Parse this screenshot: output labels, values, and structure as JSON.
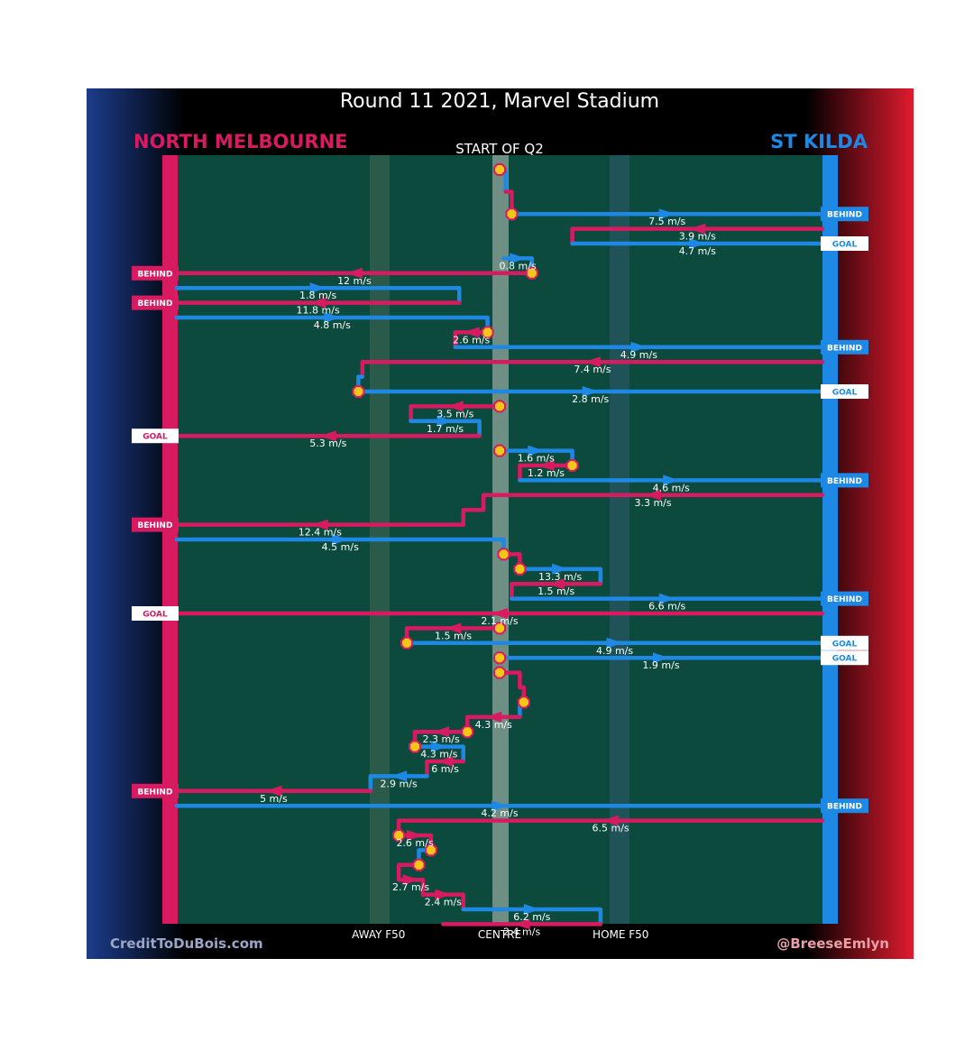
{
  "chart_data": {
    "type": "other",
    "title": "Round 11 2021, Marvel Stadium",
    "subtitle": "START OF Q2",
    "teams": {
      "left": {
        "name": "NORTH MELBOURNE",
        "color": "#d81b60"
      },
      "right": {
        "name": "ST KILDA",
        "color": "#1e88e5"
      }
    },
    "colors": {
      "north": "#d81b60",
      "stkilda": "#1e88e5",
      "field": "#0b4a3c",
      "pin_fill": "#f5c518"
    },
    "x_axis": {
      "domain": [
        -80,
        80
      ],
      "labels": [
        {
          "text": "AWAY F50",
          "x": -30
        },
        {
          "text": "CENTRE",
          "x": 0
        },
        {
          "text": "HOME F50",
          "x": 30
        }
      ]
    },
    "credits": {
      "left": "CreditToDuBois.com",
      "right": "@BreeseEmlyn"
    },
    "paths": [
      {
        "team": "stkilda",
        "pts": [
          [
            0,
            2
          ],
          [
            1.5,
            2
          ],
          [
            1.5,
            3.5
          ]
        ],
        "speed": ""
      },
      {
        "team": "north",
        "pts": [
          [
            1.5,
            3.5
          ],
          [
            3,
            3.5
          ],
          [
            3,
            5
          ]
        ],
        "speed": ""
      },
      {
        "team": "stkilda",
        "pts": [
          [
            3,
            5
          ],
          [
            80,
            5
          ]
        ],
        "speed": "7.5 m/s"
      },
      {
        "team": "north",
        "pts": [
          [
            80,
            6
          ],
          [
            18,
            6
          ],
          [
            18,
            7
          ]
        ],
        "speed": "3.9 m/s"
      },
      {
        "team": "stkilda",
        "pts": [
          [
            18,
            7
          ],
          [
            80,
            7
          ]
        ],
        "speed": "4.7 m/s"
      },
      {
        "team": "stkilda",
        "pts": [
          [
            1,
            8
          ],
          [
            8,
            8
          ],
          [
            8,
            9
          ]
        ],
        "speed": "0.8 m/s"
      },
      {
        "team": "north",
        "pts": [
          [
            8,
            9
          ],
          [
            -80,
            9
          ]
        ],
        "speed": "12 m/s"
      },
      {
        "team": "stkilda",
        "pts": [
          [
            -80,
            10
          ],
          [
            -10,
            10
          ],
          [
            -10,
            11
          ]
        ],
        "speed": "1.8 m/s"
      },
      {
        "team": "north",
        "pts": [
          [
            -10,
            11
          ],
          [
            -80,
            11
          ]
        ],
        "speed": "11.8 m/s"
      },
      {
        "team": "stkilda",
        "pts": [
          [
            -80,
            12
          ],
          [
            -3,
            12
          ],
          [
            -3,
            13
          ]
        ],
        "speed": "4.8 m/s"
      },
      {
        "team": "north",
        "pts": [
          [
            -3,
            13
          ],
          [
            -11,
            13
          ],
          [
            -11,
            14
          ]
        ],
        "speed": "2.6 m/s"
      },
      {
        "team": "stkilda",
        "pts": [
          [
            -11,
            14
          ],
          [
            80,
            14
          ]
        ],
        "speed": "4.9 m/s"
      },
      {
        "team": "north",
        "pts": [
          [
            80,
            15
          ],
          [
            -34,
            15
          ],
          [
            -34,
            16
          ]
        ],
        "speed": "7.4 m/s"
      },
      {
        "team": "stkilda",
        "pts": [
          [
            -34,
            16
          ],
          [
            -35,
            16
          ],
          [
            -35,
            17
          ]
        ],
        "speed": ""
      },
      {
        "team": "stkilda",
        "pts": [
          [
            -35,
            17
          ],
          [
            80,
            17
          ]
        ],
        "speed": "2.8 m/s"
      },
      {
        "team": "north",
        "pts": [
          [
            0,
            18
          ],
          [
            -22,
            18
          ],
          [
            -22,
            19
          ]
        ],
        "speed": "3.5 m/s"
      },
      {
        "team": "stkilda",
        "pts": [
          [
            -22,
            19
          ],
          [
            -5,
            19
          ],
          [
            -5,
            20
          ]
        ],
        "speed": "1.7 m/s"
      },
      {
        "team": "north",
        "pts": [
          [
            -5,
            20
          ],
          [
            -80,
            20
          ]
        ],
        "speed": "5.3 m/s"
      },
      {
        "team": "stkilda",
        "pts": [
          [
            0,
            21
          ],
          [
            18,
            21
          ],
          [
            18,
            22
          ]
        ],
        "speed": "1.6 m/s"
      },
      {
        "team": "north",
        "pts": [
          [
            18,
            22
          ],
          [
            5,
            22
          ],
          [
            5,
            23
          ]
        ],
        "speed": "1.2 m/s"
      },
      {
        "team": "stkilda",
        "pts": [
          [
            5,
            23
          ],
          [
            80,
            23
          ]
        ],
        "speed": "4.6 m/s"
      },
      {
        "team": "north",
        "pts": [
          [
            80,
            24
          ],
          [
            -4,
            24
          ],
          [
            -4,
            25
          ],
          [
            -9,
            25
          ],
          [
            -9,
            26
          ]
        ],
        "speed": "3.3 m/s"
      },
      {
        "team": "north",
        "pts": [
          [
            -9,
            26
          ],
          [
            -80,
            26
          ]
        ],
        "speed": "12.4 m/s"
      },
      {
        "team": "stkilda",
        "pts": [
          [
            -80,
            27
          ],
          [
            1,
            27
          ],
          [
            1,
            28
          ]
        ],
        "speed": "4.5 m/s"
      },
      {
        "team": "north",
        "pts": [
          [
            1,
            28
          ],
          [
            5,
            28
          ],
          [
            5,
            29
          ]
        ],
        "speed": ""
      },
      {
        "team": "stkilda",
        "pts": [
          [
            5,
            29
          ],
          [
            25,
            29
          ],
          [
            25,
            30
          ]
        ],
        "speed": "13.3 m/s"
      },
      {
        "team": "north",
        "pts": [
          [
            25,
            30
          ],
          [
            3,
            30
          ],
          [
            3,
            31
          ]
        ],
        "speed": "1.5 m/s"
      },
      {
        "team": "stkilda",
        "pts": [
          [
            3,
            31
          ],
          [
            80,
            31
          ]
        ],
        "speed": "6.6 m/s"
      },
      {
        "team": "north",
        "pts": [
          [
            80,
            32
          ],
          [
            -80,
            32
          ]
        ],
        "speed": "2.1 m/s"
      },
      {
        "team": "north",
        "pts": [
          [
            0,
            33
          ],
          [
            -23,
            33
          ],
          [
            -23,
            34
          ]
        ],
        "speed": "1.5 m/s"
      },
      {
        "team": "stkilda",
        "pts": [
          [
            -23,
            34
          ],
          [
            80,
            34
          ]
        ],
        "speed": "4.9 m/s"
      },
      {
        "team": "stkilda",
        "pts": [
          [
            0,
            35
          ],
          [
            80,
            35
          ]
        ],
        "speed": "1.9 m/s"
      },
      {
        "team": "north",
        "pts": [
          [
            0,
            36
          ],
          [
            5,
            36
          ],
          [
            5,
            37
          ]
        ],
        "speed": ""
      },
      {
        "team": "north",
        "pts": [
          [
            5,
            37
          ],
          [
            6,
            37
          ],
          [
            6,
            38
          ]
        ],
        "speed": ""
      },
      {
        "team": "stkilda",
        "pts": [
          [
            6,
            38
          ],
          [
            5,
            38
          ],
          [
            5,
            39
          ]
        ],
        "speed": ""
      },
      {
        "team": "north",
        "pts": [
          [
            5,
            39
          ],
          [
            -8,
            39
          ],
          [
            -8,
            40
          ]
        ],
        "speed": "4.3 m/s"
      },
      {
        "team": "north",
        "pts": [
          [
            -8,
            40
          ],
          [
            -21,
            40
          ],
          [
            -21,
            41
          ]
        ],
        "speed": "2.3 m/s"
      },
      {
        "team": "stkilda",
        "pts": [
          [
            -21,
            41
          ],
          [
            -9,
            41
          ],
          [
            -9,
            42
          ]
        ],
        "speed": "4.3 m/s"
      },
      {
        "team": "north",
        "pts": [
          [
            -9,
            42
          ],
          [
            -18,
            42
          ],
          [
            -18,
            43
          ]
        ],
        "speed": "6 m/s"
      },
      {
        "team": "stkilda",
        "pts": [
          [
            -18,
            43
          ],
          [
            -32,
            43
          ],
          [
            -32,
            44
          ]
        ],
        "speed": "2.9 m/s"
      },
      {
        "team": "north",
        "pts": [
          [
            -32,
            44
          ],
          [
            -80,
            44
          ]
        ],
        "speed": "5 m/s"
      },
      {
        "team": "stkilda",
        "pts": [
          [
            -80,
            45
          ],
          [
            80,
            45
          ]
        ],
        "speed": "4.2 m/s"
      },
      {
        "team": "north",
        "pts": [
          [
            80,
            46
          ],
          [
            -25,
            46
          ],
          [
            -25,
            47
          ]
        ],
        "speed": "6.5 m/s"
      },
      {
        "team": "north",
        "pts": [
          [
            -25,
            47
          ],
          [
            -17,
            47
          ],
          [
            -17,
            48
          ]
        ],
        "speed": "2.6 m/s"
      },
      {
        "team": "stkilda",
        "pts": [
          [
            -17,
            48
          ],
          [
            -20,
            48
          ],
          [
            -20,
            49
          ]
        ],
        "speed": ""
      },
      {
        "team": "north",
        "pts": [
          [
            -20,
            49
          ],
          [
            -25,
            49
          ],
          [
            -25,
            50
          ],
          [
            -19,
            50
          ],
          [
            -19,
            51
          ]
        ],
        "speed": "2.7 m/s"
      },
      {
        "team": "north",
        "pts": [
          [
            -19,
            51
          ],
          [
            -9,
            51
          ],
          [
            -9,
            52
          ]
        ],
        "speed": "2.4 m/s"
      },
      {
        "team": "stkilda",
        "pts": [
          [
            -9,
            52
          ],
          [
            25,
            52
          ],
          [
            25,
            53
          ]
        ],
        "speed": "6.2 m/s"
      },
      {
        "team": "north",
        "pts": [
          [
            25,
            53
          ],
          [
            -14,
            53
          ]
        ],
        "speed": "2.4 m/s"
      }
    ],
    "outcomes": [
      {
        "side": "right",
        "row": 5,
        "text": "BEHIND",
        "team": "stkilda"
      },
      {
        "side": "right",
        "row": 7,
        "text": "GOAL",
        "team": "stkilda"
      },
      {
        "side": "left",
        "row": 9,
        "text": "BEHIND",
        "team": "north"
      },
      {
        "side": "left",
        "row": 11,
        "text": "BEHIND",
        "team": "north"
      },
      {
        "side": "right",
        "row": 14,
        "text": "BEHIND",
        "team": "stkilda"
      },
      {
        "side": "right",
        "row": 17,
        "text": "GOAL",
        "team": "stkilda"
      },
      {
        "side": "left",
        "row": 20,
        "text": "GOAL",
        "team": "north"
      },
      {
        "side": "right",
        "row": 23,
        "text": "BEHIND",
        "team": "stkilda"
      },
      {
        "side": "left",
        "row": 26,
        "text": "BEHIND",
        "team": "north"
      },
      {
        "side": "right",
        "row": 31,
        "text": "BEHIND",
        "team": "stkilda"
      },
      {
        "side": "left",
        "row": 32,
        "text": "GOAL",
        "team": "north"
      },
      {
        "side": "right",
        "row": 34,
        "text": "GOAL",
        "team": "stkilda"
      },
      {
        "side": "right",
        "row": 35,
        "text": "GOAL",
        "team": "stkilda"
      },
      {
        "side": "left",
        "row": 44,
        "text": "BEHIND",
        "team": "north"
      },
      {
        "side": "right",
        "row": 45,
        "text": "BEHIND",
        "team": "stkilda"
      }
    ],
    "stoppages": [
      [
        0,
        2
      ],
      [
        3,
        5
      ],
      [
        8,
        9
      ],
      [
        -3,
        13
      ],
      [
        -35,
        17
      ],
      [
        0,
        18
      ],
      [
        0,
        21
      ],
      [
        18,
        22
      ],
      [
        1,
        28
      ],
      [
        5,
        29
      ],
      [
        0,
        33
      ],
      [
        -23,
        34
      ],
      [
        0,
        35
      ],
      [
        0,
        36
      ],
      [
        6,
        38
      ],
      [
        -8,
        40
      ],
      [
        -21,
        41
      ],
      [
        -25,
        47
      ],
      [
        -17,
        48
      ],
      [
        -20,
        49
      ]
    ]
  }
}
